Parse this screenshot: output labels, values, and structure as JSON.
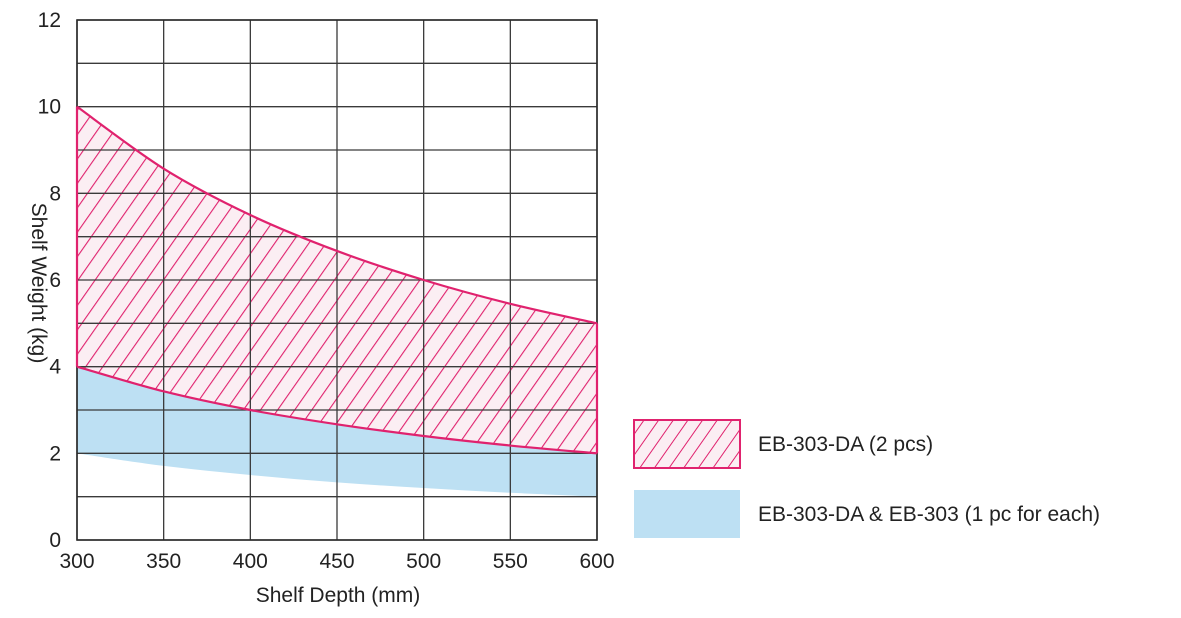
{
  "chart_data": {
    "type": "area",
    "x": [
      300,
      350,
      400,
      450,
      500,
      550,
      600
    ],
    "xlim": [
      300,
      600
    ],
    "ylim": [
      0,
      12
    ],
    "x_ticks": [
      300,
      350,
      400,
      450,
      500,
      550,
      600
    ],
    "y_ticks": [
      0,
      2,
      4,
      6,
      8,
      10,
      12
    ],
    "y_minor_gridlines": [
      1,
      3,
      5,
      7,
      9,
      11
    ],
    "grid": true,
    "title": "",
    "xlabel": "Shelf Depth (mm)",
    "ylabel": "Shelf Weight (kg)",
    "legend_position": "bottom-right",
    "series": [
      {
        "name": "EB-303-DA (2 pcs)",
        "style": "hatched",
        "color": "#e0226e",
        "fill": "#fbeef3",
        "upper": [
          10.0,
          8.57,
          7.5,
          6.67,
          6.0,
          5.45,
          5.0
        ],
        "lower": [
          4.0,
          3.43,
          3.0,
          2.67,
          2.4,
          2.18,
          2.0
        ]
      },
      {
        "name": "EB-303-DA & EB-303 (1 pc for each)",
        "style": "solid",
        "color": "#bde0f3",
        "upper": [
          5.0,
          4.29,
          3.75,
          3.33,
          3.0,
          2.73,
          2.5
        ],
        "lower": [
          2.0,
          1.71,
          1.5,
          1.33,
          1.2,
          1.09,
          1.0
        ]
      }
    ]
  }
}
